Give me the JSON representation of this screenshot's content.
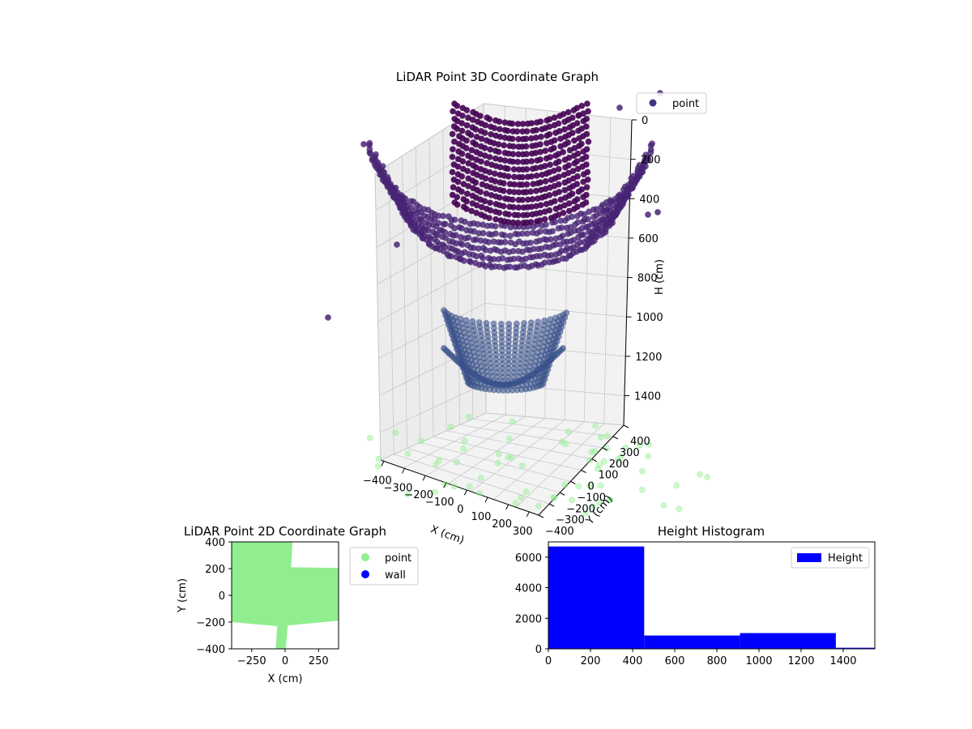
{
  "chart_data": [
    {
      "id": "scatter3d",
      "type": "scatter",
      "title": "LiDAR Point 3D Coordinate Graph",
      "xlabel": "X (cm)",
      "ylabel": "Y (cm)",
      "zlabel": "H (cm)",
      "x_ticks": [
        "−400",
        "−300",
        "−200",
        "−100",
        "0",
        "100",
        "200",
        "300"
      ],
      "y_ticks": [
        "−400",
        "−300",
        "−200",
        "−100",
        "0",
        "100",
        "200",
        "300",
        "400"
      ],
      "z_ticks": [
        "0",
        "200",
        "400",
        "600",
        "800",
        "1000",
        "1200",
        "1400"
      ],
      "xlim": [
        -400,
        400
      ],
      "ylim": [
        -400,
        400
      ],
      "zlim": [
        0,
        1550
      ],
      "z_inverted": true,
      "grid": true,
      "legend": {
        "entries": [
          "point"
        ],
        "placement": "top-right"
      },
      "colors": {
        "top_band": "#440154",
        "mid_band": "#482475",
        "lower_band": "#3b528b",
        "floor_points": "#90ee90"
      }
    },
    {
      "id": "scatter2d",
      "type": "scatter",
      "title": "LiDAR Point 2D Coordinate Graph",
      "xlabel": "X (cm)",
      "ylabel": "Y (cm)",
      "x_ticks": [
        "−250",
        "0",
        "250"
      ],
      "y_ticks": [
        "400",
        "200",
        "0",
        "−200",
        "−400"
      ],
      "xlim": [
        -400,
        400
      ],
      "ylim": [
        -400,
        400
      ],
      "legend": {
        "entries": [
          "point",
          "wall"
        ],
        "placement": "outside-right"
      },
      "colors": {
        "point": "#90ee90",
        "wall": "#0000ff"
      }
    },
    {
      "id": "histogram",
      "type": "bar",
      "title": "Height Histogram",
      "x_ticks": [
        "0",
        "200",
        "400",
        "600",
        "800",
        "1000",
        "1200",
        "1400"
      ],
      "y_ticks": [
        "0",
        "2000",
        "4000",
        "6000"
      ],
      "xlim": [
        0,
        1550
      ],
      "ylim": [
        0,
        7000
      ],
      "bins": [
        {
          "start": 0,
          "end": 455,
          "count": 6700
        },
        {
          "start": 455,
          "end": 910,
          "count": 870
        },
        {
          "start": 910,
          "end": 1365,
          "count": 1030
        },
        {
          "start": 1365,
          "end": 1820,
          "count": 70
        }
      ],
      "legend": {
        "entries": [
          "Height"
        ],
        "placement": "top-right"
      },
      "colors": {
        "bar": "#0000ff"
      }
    }
  ]
}
